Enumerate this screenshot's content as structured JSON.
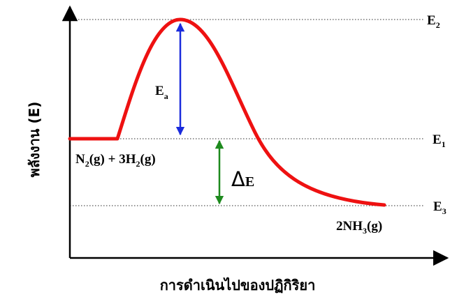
{
  "diagram": {
    "y_axis_label": "พลังงาน (E)",
    "x_axis_label": "การดำเนินไปของปฏิกิริยา",
    "levels": {
      "e2": {
        "base": "E",
        "sub": "2"
      },
      "e1": {
        "base": "E",
        "sub": "1"
      },
      "e3": {
        "base": "E",
        "sub": "3"
      }
    },
    "activation_energy": {
      "base": "E",
      "sub": "a"
    },
    "delta_energy": {
      "symbol": "Δ",
      "letter": "E"
    },
    "reactants": {
      "parts": [
        "N",
        "2",
        "(g) + 3H",
        "2",
        "(g)"
      ]
    },
    "products": {
      "parts": [
        "2NH",
        "3",
        "(g)"
      ]
    },
    "colors": {
      "curve": "#ee1111",
      "activation_arrow": "#1a2bdc",
      "delta_arrow": "#1e8a1e",
      "axes": "#000000",
      "guide_lines": "#555555"
    }
  }
}
